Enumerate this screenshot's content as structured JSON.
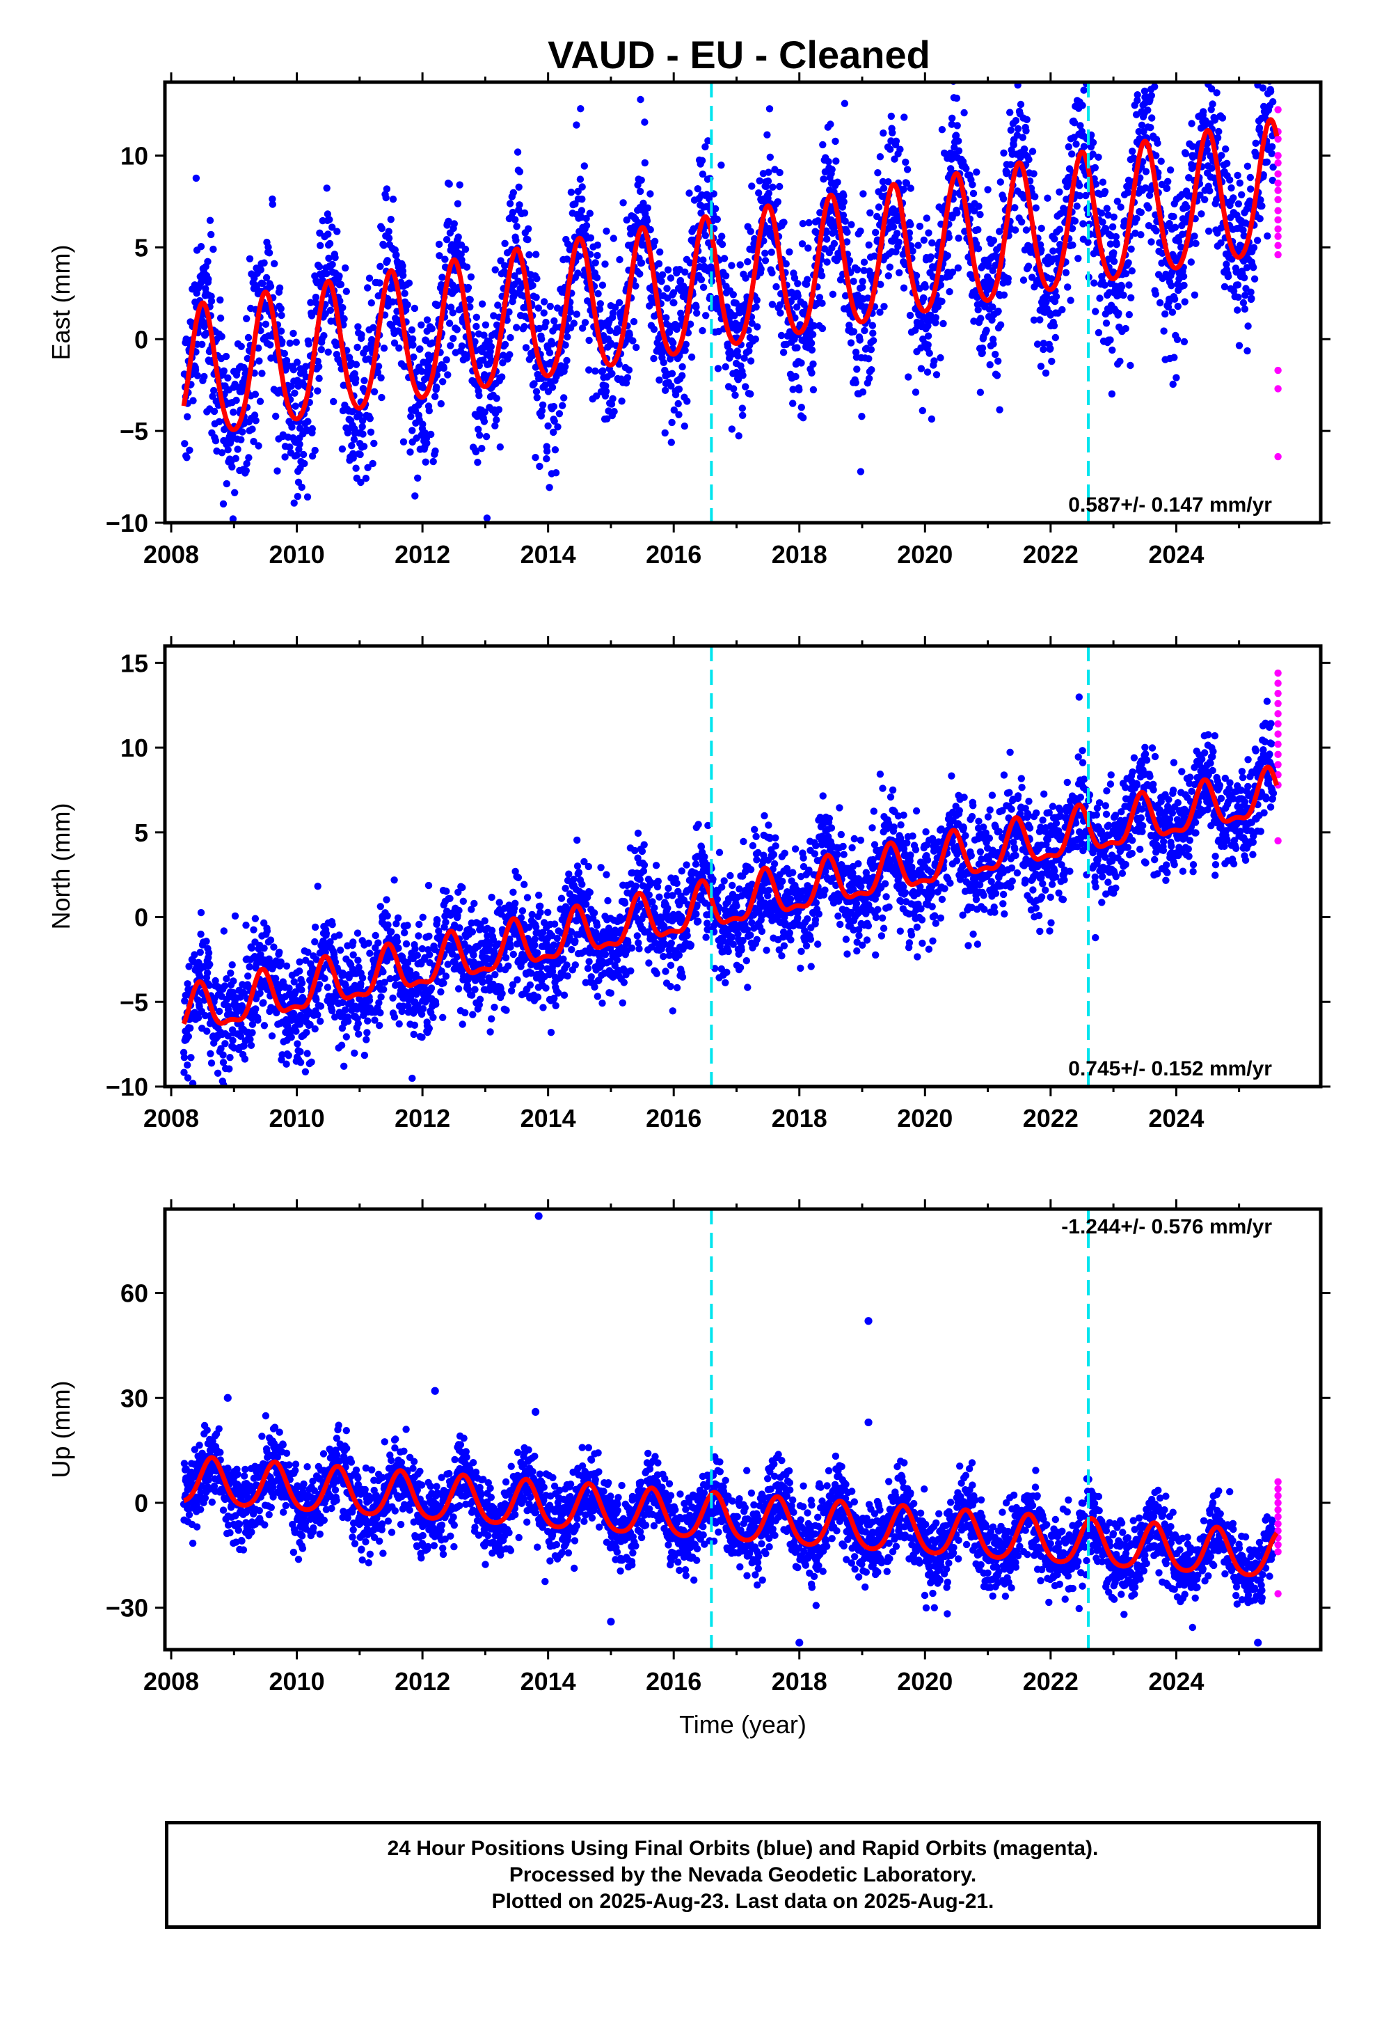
{
  "title": "VAUD  - EU - Cleaned",
  "chart_data": [
    {
      "type": "scatter",
      "panel": "east",
      "ylabel": "East (mm)",
      "xlim": [
        2007.9,
        2026.3
      ],
      "ylim": [
        -10,
        14
      ],
      "xticks": [
        2008,
        2010,
        2012,
        2014,
        2016,
        2018,
        2020,
        2022,
        2024
      ],
      "yticks": [
        -10,
        -5,
        0,
        5,
        10
      ],
      "grid": false,
      "rate_text": "0.587+/- 0.147 mm/yr",
      "step_lines": [
        2016.6,
        2022.6
      ],
      "fit_model": {
        "x0": 2008.2,
        "y0": -2.2,
        "slope": 0.587,
        "annual_amp": 3.6,
        "annual_peak": 2008.5,
        "semiannual_amp": 0.4
      },
      "scatter_spread": 2.3,
      "rapid_points": [
        12.5,
        11.3,
        10.9,
        10.0,
        9.6,
        9.0,
        8.5,
        8.1,
        7.6,
        7.0,
        6.5,
        6.0,
        5.6,
        5.1,
        4.6,
        -1.7,
        -2.7,
        -6.4
      ]
    },
    {
      "type": "scatter",
      "panel": "north",
      "ylabel": "North (mm)",
      "xlim": [
        2007.9,
        2026.3
      ],
      "ylim": [
        -10,
        16
      ],
      "xticks": [
        2008,
        2010,
        2012,
        2014,
        2016,
        2018,
        2020,
        2022,
        2024
      ],
      "yticks": [
        -10,
        -5,
        0,
        5,
        10,
        15
      ],
      "grid": false,
      "rate_text": "0.745+/- 0.152 mm/yr",
      "step_lines": [
        2016.6,
        2022.6
      ],
      "fit_model": {
        "x0": 2008.2,
        "y0": -5.8,
        "slope": 0.745,
        "annual_amp": 1.3,
        "annual_peak": 2008.45,
        "semiannual_amp": 0.5
      },
      "scatter_spread": 1.6,
      "rapid_points": [
        14.4,
        13.8,
        13.2,
        12.6,
        12.0,
        11.4,
        10.8,
        10.2,
        9.6,
        9.0,
        8.4,
        7.8,
        4.5
      ]
    },
    {
      "type": "scatter",
      "panel": "up",
      "ylabel": "Up (mm)",
      "xlabel": "Time (year)",
      "xlim": [
        2007.9,
        2026.3
      ],
      "ylim": [
        -42,
        84
      ],
      "xticks": [
        2008,
        2010,
        2012,
        2014,
        2016,
        2018,
        2020,
        2022,
        2024
      ],
      "yticks": [
        -30,
        0,
        30,
        60
      ],
      "grid": false,
      "rate_text": "-1.244+/- 0.576 mm/yr",
      "step_lines": [
        2016.6,
        2022.6
      ],
      "fit_model": {
        "x0": 2008.2,
        "y0": 6,
        "slope": -1.244,
        "annual_amp": 6.5,
        "annual_peak": 2008.65,
        "semiannual_amp": 1.0
      },
      "scatter_spread": 5.5,
      "outliers": [
        [
          2013.85,
          82
        ],
        [
          2019.1,
          52
        ],
        [
          2012.2,
          32
        ],
        [
          2008.9,
          30
        ],
        [
          2013.8,
          26
        ],
        [
          2019.1,
          23
        ],
        [
          2018.0,
          -40
        ],
        [
          2025.3,
          -40
        ],
        [
          2015.0,
          -34
        ]
      ],
      "rapid_points": [
        6,
        4,
        2,
        0,
        -2,
        -4,
        -6,
        -8,
        -10,
        -12,
        -14,
        -26
      ]
    }
  ],
  "footer": {
    "line1": "24 Hour Positions Using Final Orbits (blue) and Rapid Orbits (magenta).",
    "line2": "Processed by the Nevada Geodetic Laboratory.",
    "line3": "Plotted on 2025-Aug-23. Last data on 2025-Aug-21."
  },
  "colors": {
    "final_orbits": "#0000ff",
    "rapid_orbits": "#ff00ff",
    "fit_line": "#ff0000",
    "step_lines": "#00e5ee",
    "frame": "#000000"
  }
}
